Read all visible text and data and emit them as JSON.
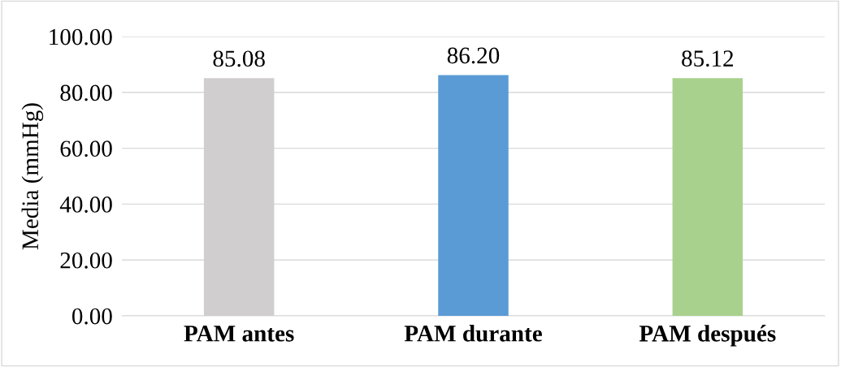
{
  "chart_data": {
    "type": "bar",
    "ylabel": "Media (mmHg)",
    "categories": [
      "PAM antes",
      "PAM durante",
      "PAM después"
    ],
    "values": [
      85.08,
      86.2,
      85.12
    ],
    "colors": [
      "#d0cece",
      "#5b9bd5",
      "#a9d18e"
    ],
    "value_labels": [
      "85.08",
      "86.20",
      "85.12"
    ],
    "ylim": [
      0,
      100
    ],
    "yticks": [
      {
        "value": 0,
        "label": "0.00"
      },
      {
        "value": 20,
        "label": "20.00"
      },
      {
        "value": 40,
        "label": "40.00"
      },
      {
        "value": 60,
        "label": "60.00"
      },
      {
        "value": 80,
        "label": "80.00"
      },
      {
        "value": 100,
        "label": "100.00"
      }
    ],
    "grid": "y",
    "legend": false
  }
}
